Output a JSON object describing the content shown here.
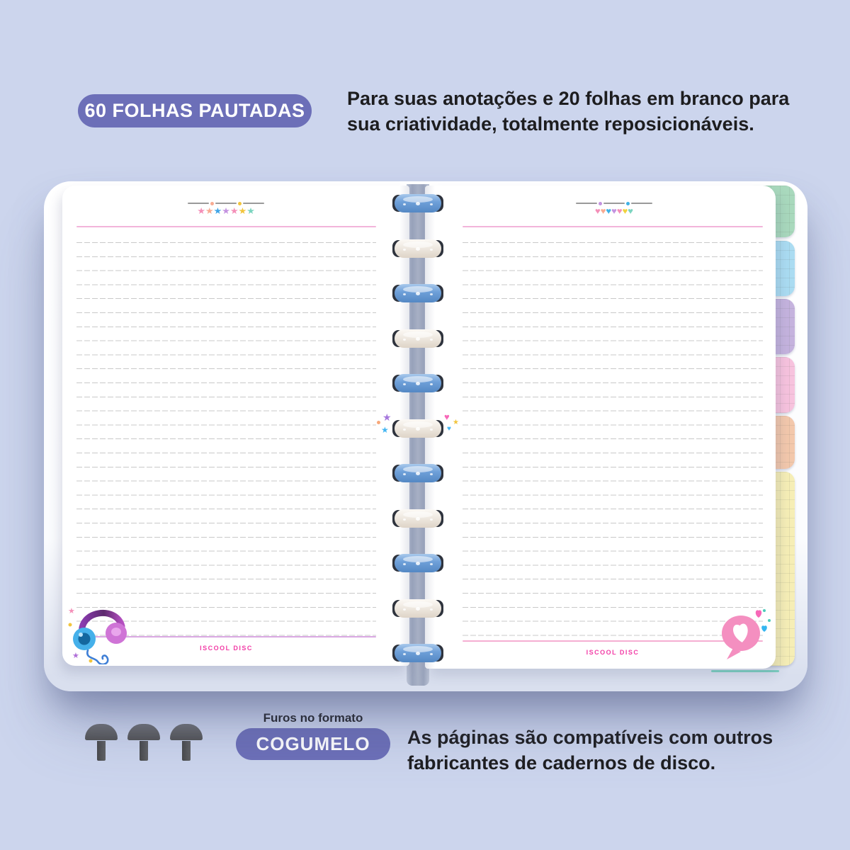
{
  "header": {
    "badge": "60 FOLHAS PAUTADAS",
    "description_line1": "Para suas anotações e 20 folhas em branco para",
    "description_line2": "sua criatividade, totalmente reposicionáveis."
  },
  "footer": {
    "format_label": "Furos no formato",
    "format_badge": "COGUMELO",
    "description_line1": "As páginas são compatíveis com outros",
    "description_line2": "fabricantes de cadernos de disco.",
    "mushroom_count": 3
  },
  "notebook": {
    "brand_left": "ISCOOL DISC",
    "brand_right": "ISCOOL DISC",
    "binding": {
      "disc_count": 11,
      "disc_colors": [
        "#6fa0d9",
        "#efe9e1"
      ]
    },
    "tabs": [
      {
        "name": "green",
        "color": "#a9d9bd"
      },
      {
        "name": "blue",
        "color": "#abdcf2"
      },
      {
        "name": "purple",
        "color": "#c5b3de"
      },
      {
        "name": "pink",
        "color": "#f7c3de"
      },
      {
        "name": "peach",
        "color": "#f3c8ac"
      },
      {
        "name": "yellow",
        "color": "#f6eeb6"
      }
    ],
    "left_page": {
      "garland_star_colors": [
        "#f48fb8",
        "#f8ab92",
        "#3fa4e6",
        "#c493e0",
        "#f48fb8",
        "#f2c53d",
        "#7bd4bf"
      ],
      "garland_dot_colors": [
        "#f8ab92",
        "#f2c53d"
      ]
    },
    "right_page": {
      "garland_heart_colors": [
        "#f48fb8",
        "#f8ab92",
        "#3fb2e6",
        "#c493e0",
        "#f48fb8",
        "#f0d23d",
        "#7bd4bf"
      ],
      "garland_dot_colors": [
        "#c493e0",
        "#3fb2e6"
      ]
    },
    "center_sparkles": [
      {
        "glyph": "star",
        "color": "#a678dd"
      },
      {
        "glyph": "dot",
        "color": "#f8a87a"
      },
      {
        "glyph": "star",
        "color": "#45b6f2"
      },
      {
        "glyph": "heart",
        "color": "#f768b8"
      },
      {
        "glyph": "star",
        "color": "#f2c53d"
      },
      {
        "glyph": "heart",
        "color": "#45b6f2"
      }
    ]
  },
  "glyphs": {
    "star": "★",
    "heart": "♥"
  },
  "colors": {
    "background": "#ccd5ed",
    "badge_purple": "#6c6fb8",
    "text_dark": "#1d1d1f",
    "rule_pink": "#f2b4da",
    "line_gray": "#bcbcbc",
    "brand_pink": "#f23ca6",
    "disc_blue": "#6fa0d9",
    "disc_pearl": "#efe9e1"
  }
}
